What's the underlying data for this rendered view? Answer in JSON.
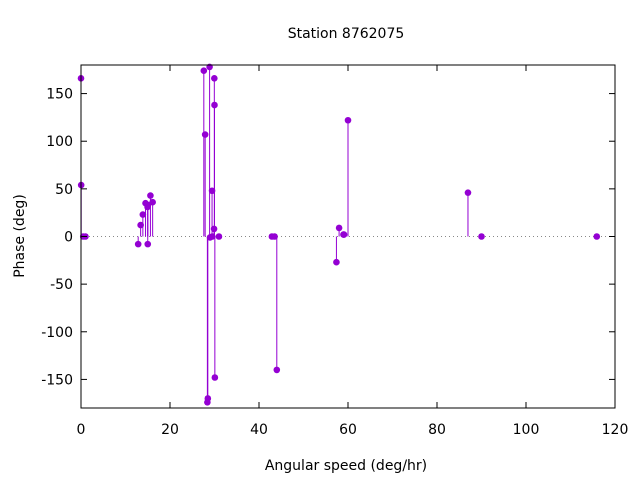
{
  "chart_data": {
    "type": "stem",
    "title": "Station 8762075",
    "xlabel": "Angular speed (deg/hr)",
    "ylabel": "Phase (deg)",
    "xlim": [
      0,
      120
    ],
    "ylim": [
      -180,
      180
    ],
    "xticks": [
      0,
      20,
      40,
      60,
      80,
      100,
      120
    ],
    "yticks": [
      -150,
      -100,
      -50,
      0,
      50,
      100,
      150
    ],
    "grid": false,
    "zero_line": "dotted",
    "color": "#9400d3",
    "points": [
      {
        "x": 0.0,
        "y": 166
      },
      {
        "x": 0.04,
        "y": 54
      },
      {
        "x": 0.5,
        "y": 0
      },
      {
        "x": 1.0,
        "y": 0
      },
      {
        "x": 12.85,
        "y": -8
      },
      {
        "x": 13.4,
        "y": 12
      },
      {
        "x": 13.9,
        "y": 23
      },
      {
        "x": 14.5,
        "y": 35
      },
      {
        "x": 14.96,
        "y": 31
      },
      {
        "x": 15.0,
        "y": -8
      },
      {
        "x": 15.04,
        "y": 33
      },
      {
        "x": 15.6,
        "y": 43
      },
      {
        "x": 16.1,
        "y": 36
      },
      {
        "x": 27.6,
        "y": 174
      },
      {
        "x": 27.9,
        "y": 107
      },
      {
        "x": 28.4,
        "y": -174
      },
      {
        "x": 28.5,
        "y": -170
      },
      {
        "x": 28.9,
        "y": 178
      },
      {
        "x": 29.0,
        "y": -1
      },
      {
        "x": 29.45,
        "y": 48
      },
      {
        "x": 29.5,
        "y": 0
      },
      {
        "x": 29.9,
        "y": 8
      },
      {
        "x": 29.96,
        "y": 166
      },
      {
        "x": 30.0,
        "y": 138
      },
      {
        "x": 30.08,
        "y": -148
      },
      {
        "x": 31.0,
        "y": 0
      },
      {
        "x": 42.9,
        "y": 0
      },
      {
        "x": 43.5,
        "y": 0
      },
      {
        "x": 44.0,
        "y": -140
      },
      {
        "x": 57.4,
        "y": -27
      },
      {
        "x": 58.0,
        "y": 9
      },
      {
        "x": 58.98,
        "y": 2
      },
      {
        "x": 59.1,
        "y": 2
      },
      {
        "x": 60.0,
        "y": 122
      },
      {
        "x": 86.96,
        "y": 46
      },
      {
        "x": 90.0,
        "y": 0
      },
      {
        "x": 115.9,
        "y": 0
      }
    ]
  }
}
